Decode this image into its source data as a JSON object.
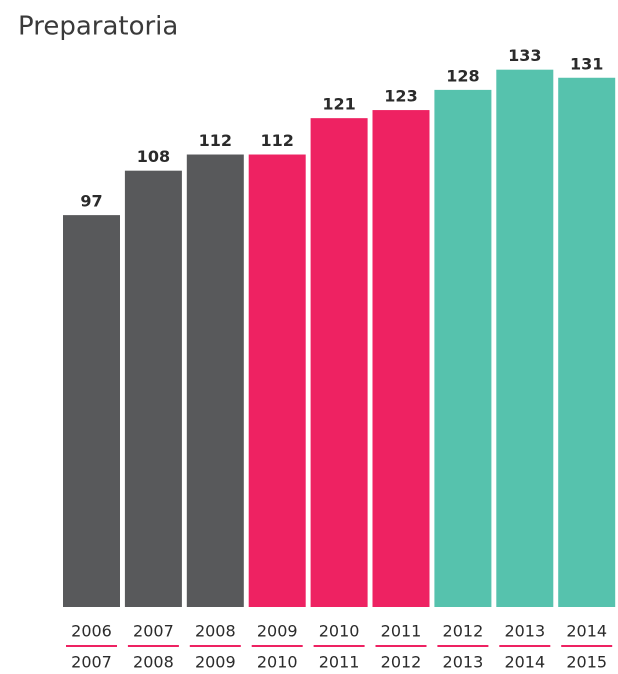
{
  "chart_data": {
    "type": "bar",
    "title": "Preparatoria",
    "categories": [
      [
        "2006",
        "2007"
      ],
      [
        "2007",
        "2008"
      ],
      [
        "2008",
        "2009"
      ],
      [
        "2009",
        "2010"
      ],
      [
        "2010",
        "2011"
      ],
      [
        "2011",
        "2012"
      ],
      [
        "2012",
        "2013"
      ],
      [
        "2013",
        "2014"
      ],
      [
        "2014",
        "2015"
      ]
    ],
    "values": [
      97,
      108,
      112,
      112,
      121,
      123,
      128,
      133,
      131
    ],
    "colors": [
      "#58595b",
      "#58595b",
      "#58595b",
      "#ee2262",
      "#ee2262",
      "#ee2262",
      "#56c2ad",
      "#56c2ad",
      "#56c2ad"
    ],
    "ylim": [
      0,
      150
    ]
  }
}
